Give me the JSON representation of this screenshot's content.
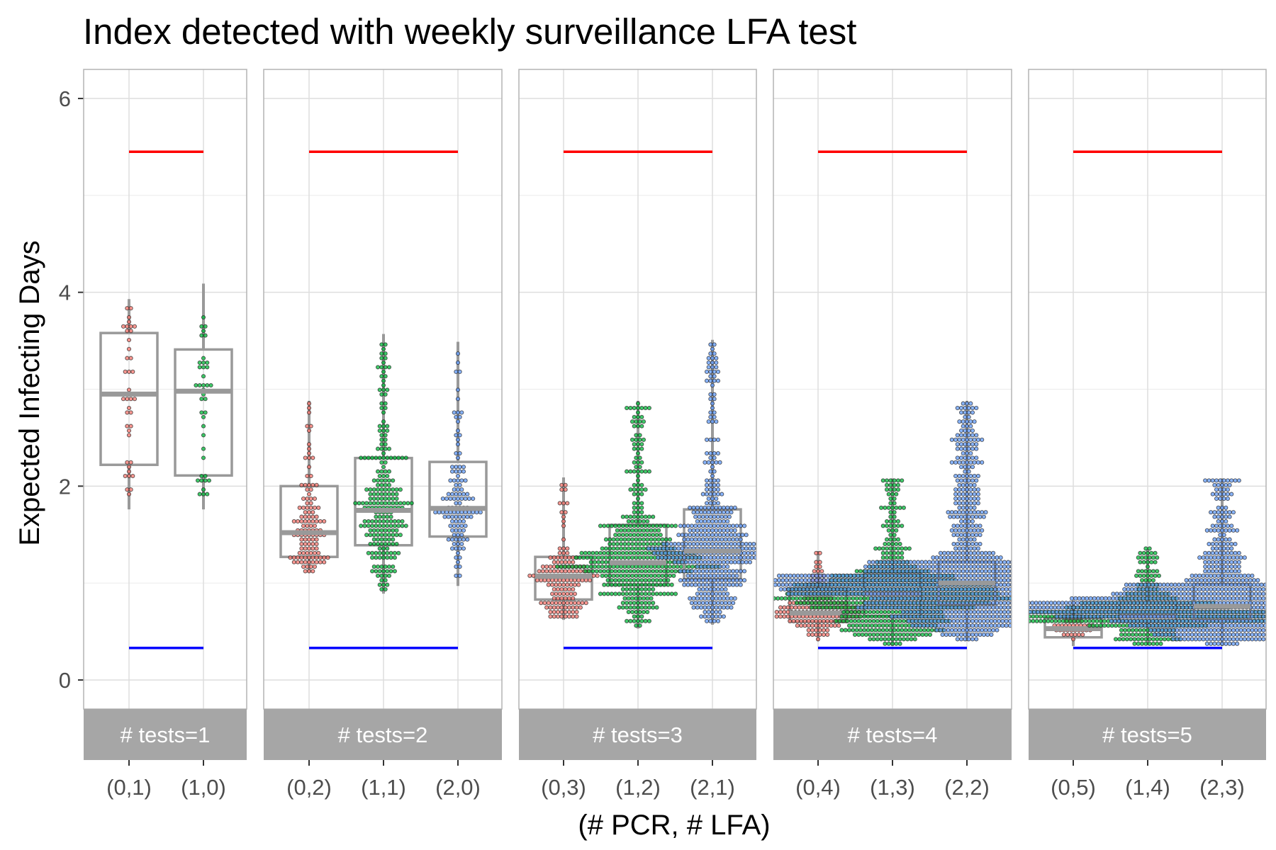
{
  "chart_data": {
    "type": "box",
    "title": "Index detected with weekly surveillance LFA test",
    "xlabel": "(# PCR, # LFA)",
    "ylabel": "Expected Infecting Days",
    "ylim": [
      -0.3,
      6.3
    ],
    "yticks": [
      0,
      2,
      4,
      6
    ],
    "ytick_labels": [
      "0",
      "2",
      "4",
      "6"
    ],
    "reference_lines": {
      "upper": 5.45,
      "lower": 0.33,
      "upper_color": "#ff0000",
      "lower_color": "#0000ff"
    },
    "colors": {
      "pcr0_fill": "#f8766d",
      "pcr1_fill": "#00ba38",
      "pcr2_fill": "#619cff",
      "box_stroke": "#999999",
      "strip_fill": "#a6a6a6",
      "panel_border": "#b3b3b3",
      "grid": "#dedede"
    },
    "panels": [
      {
        "label": "# tests=1",
        "groups": [
          {
            "category": "(0,1)",
            "pcr": 0,
            "q1": 2.22,
            "median": 2.95,
            "q3": 3.58,
            "whisker_low": 1.76,
            "whisker_high": 3.93,
            "ymin": 1.76,
            "ymax": 3.93,
            "n": 40
          },
          {
            "category": "(1,0)",
            "pcr": 1,
            "q1": 2.11,
            "median": 2.98,
            "q3": 3.41,
            "whisker_low": 1.76,
            "whisker_high": 4.09,
            "ymin": 1.76,
            "ymax": 4.09,
            "n": 40
          }
        ]
      },
      {
        "label": "# tests=2",
        "groups": [
          {
            "category": "(0,2)",
            "pcr": 0,
            "q1": 1.27,
            "median": 1.52,
            "q3": 2.0,
            "whisker_low": 1.11,
            "whisker_high": 2.88,
            "ymin": 1.11,
            "ymax": 2.88,
            "n": 120
          },
          {
            "category": "(1,1)",
            "pcr": 1,
            "q1": 1.39,
            "median": 1.75,
            "q3": 2.29,
            "whisker_low": 0.89,
            "whisker_high": 3.57,
            "ymin": 0.89,
            "ymax": 3.57,
            "n": 240
          },
          {
            "category": "(2,0)",
            "pcr": 2,
            "q1": 1.48,
            "median": 1.77,
            "q3": 2.25,
            "whisker_low": 0.97,
            "whisker_high": 3.49,
            "ymin": 0.97,
            "ymax": 3.49,
            "n": 120
          }
        ]
      },
      {
        "label": "# tests=3",
        "groups": [
          {
            "category": "(0,3)",
            "pcr": 0,
            "q1": 0.83,
            "median": 1.07,
            "q3": 1.27,
            "whisker_low": 0.62,
            "whisker_high": 2.09,
            "ymin": 0.62,
            "ymax": 2.09,
            "n": 160
          },
          {
            "category": "(1,2)",
            "pcr": 1,
            "q1": 0.98,
            "median": 1.21,
            "q3": 1.6,
            "whisker_low": 0.53,
            "whisker_high": 2.88,
            "ymin": 0.53,
            "ymax": 2.88,
            "n": 480
          },
          {
            "category": "(2,1)",
            "pcr": 2,
            "q1": 1.04,
            "median": 1.33,
            "q3": 1.76,
            "whisker_low": 0.57,
            "whisker_high": 3.51,
            "ymin": 0.57,
            "ymax": 3.51,
            "n": 480
          }
        ]
      },
      {
        "label": "# tests=4",
        "groups": [
          {
            "category": "(0,4)",
            "pcr": 0,
            "q1": 0.6,
            "median": 0.69,
            "q3": 0.93,
            "whisker_low": 0.4,
            "whisker_high": 1.33,
            "ymin": 0.4,
            "ymax": 1.33,
            "n": 180
          },
          {
            "category": "(1,3)",
            "pcr": 1,
            "q1": 0.66,
            "median": 0.89,
            "q3": 1.11,
            "whisker_low": 0.35,
            "whisker_high": 2.08,
            "ymin": 0.35,
            "ymax": 2.08,
            "n": 700
          },
          {
            "category": "(2,2)",
            "pcr": 2,
            "q1": 0.78,
            "median": 1.0,
            "q3": 1.22,
            "whisker_low": 0.4,
            "whisker_high": 2.88,
            "ymin": 0.4,
            "ymax": 2.88,
            "n": 1300
          }
        ]
      },
      {
        "label": "# tests=5",
        "groups": [
          {
            "category": "(0,5)",
            "pcr": 0,
            "q1": 0.44,
            "median": 0.53,
            "q3": 0.64,
            "whisker_low": 0.35,
            "whisker_high": 0.82,
            "ymin": 0.35,
            "ymax": 0.82,
            "n": 40
          },
          {
            "category": "(1,4)",
            "pcr": 1,
            "q1": 0.6,
            "median": 0.66,
            "q3": 0.8,
            "whisker_low": 0.36,
            "whisker_high": 1.35,
            "ymin": 0.36,
            "ymax": 1.35,
            "n": 500
          },
          {
            "category": "(2,3)",
            "pcr": 2,
            "q1": 0.62,
            "median": 0.76,
            "q3": 0.99,
            "whisker_low": 0.35,
            "whisker_high": 2.08,
            "ymin": 0.35,
            "ymax": 2.08,
            "n": 1100
          }
        ]
      }
    ]
  }
}
